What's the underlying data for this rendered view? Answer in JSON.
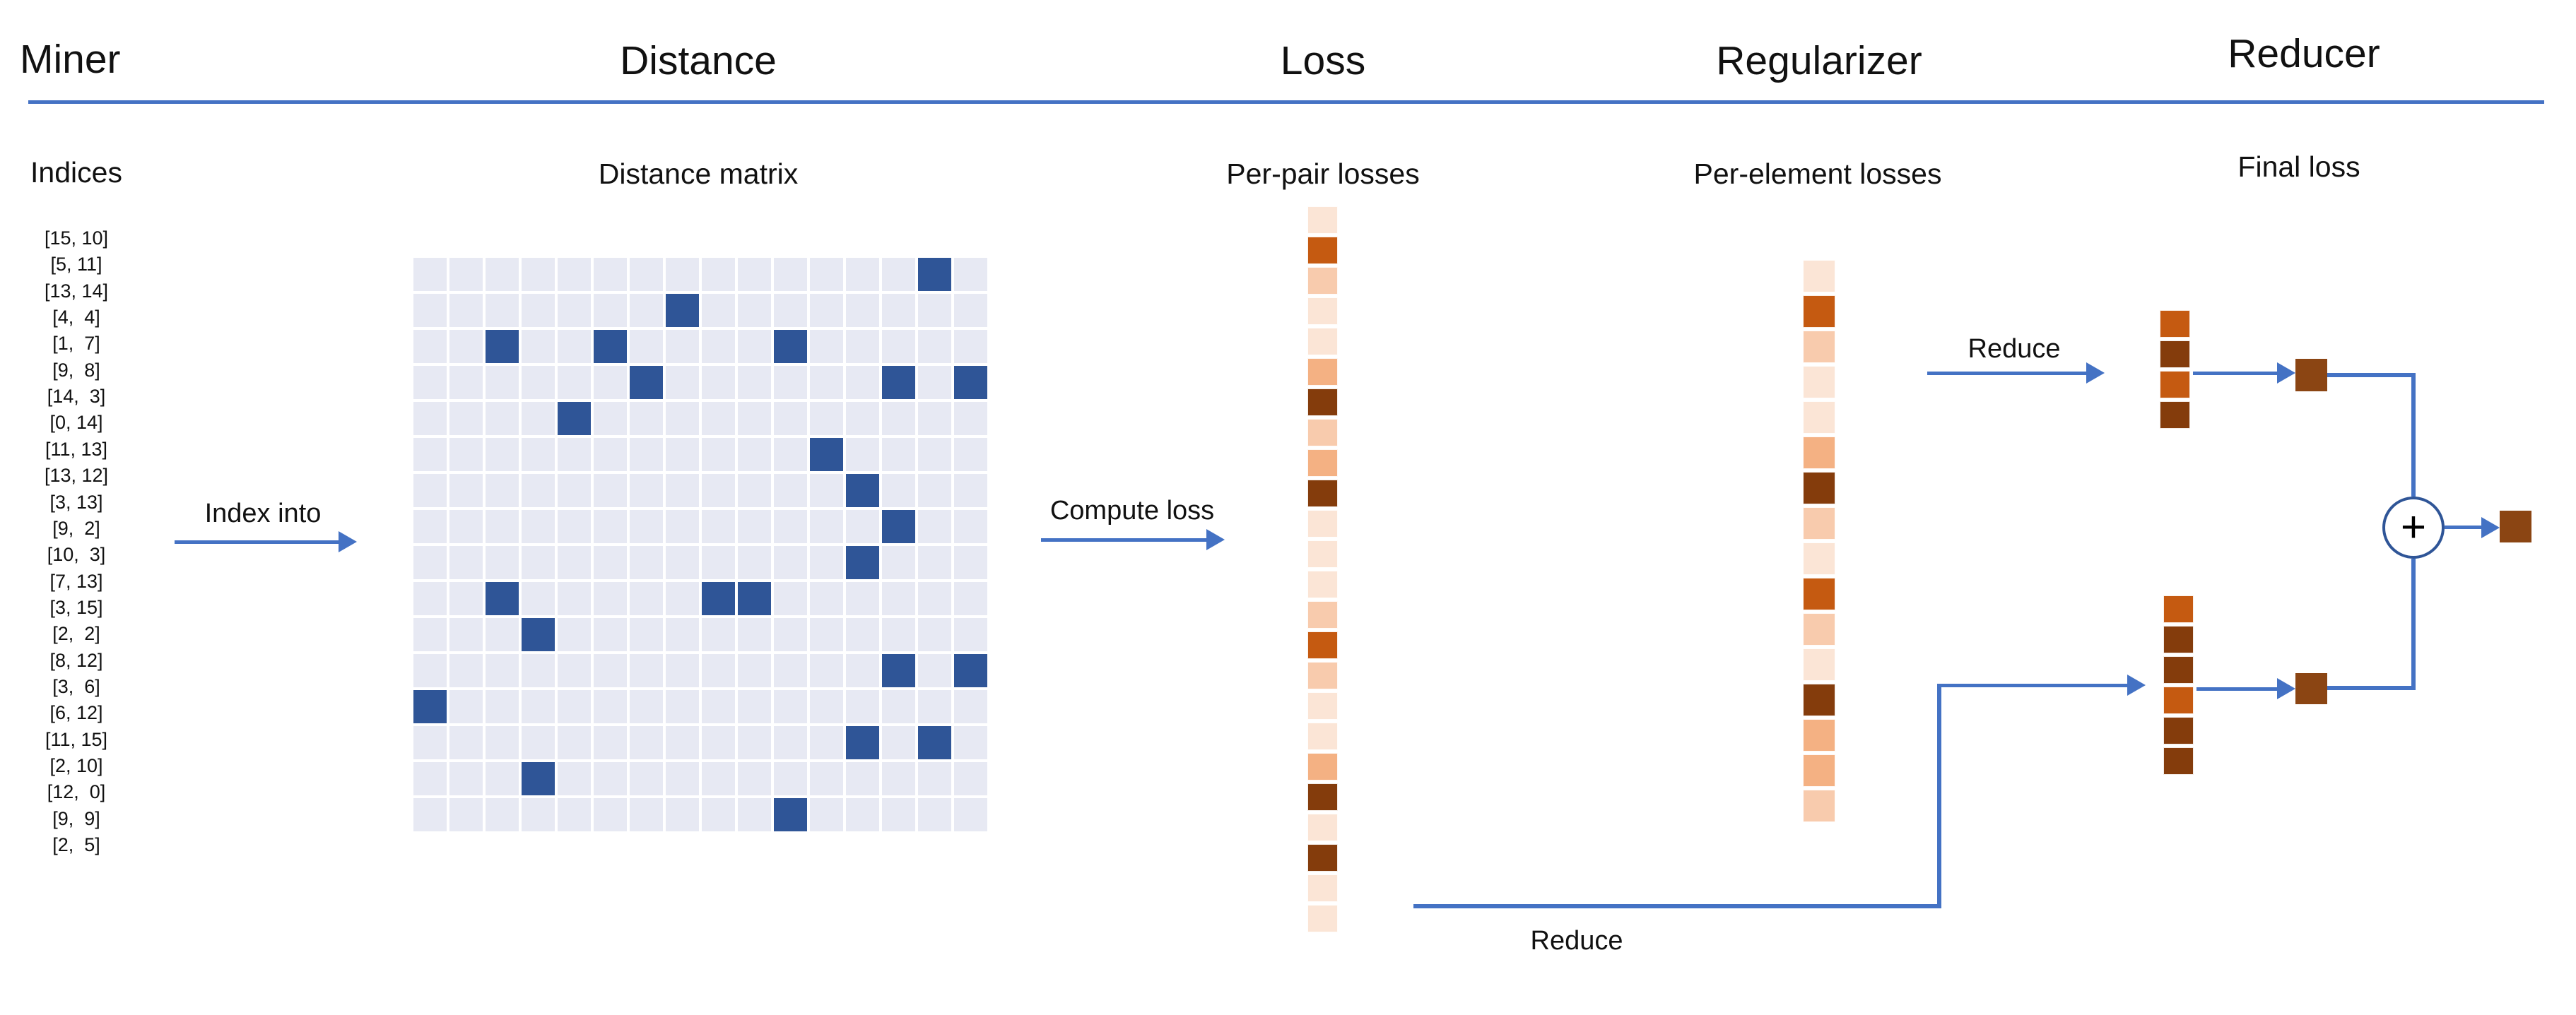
{
  "title_row": {
    "miner": "Miner",
    "distance": "Distance",
    "loss": "Loss",
    "regularizer": "Regularizer",
    "reducer": "Reducer"
  },
  "subheaders": {
    "miner": "Indices",
    "distance": "Distance matrix",
    "loss": "Per-pair losses",
    "regularizer": "Per-element losses",
    "reducer": "Final loss"
  },
  "labels": {
    "index_into": "Index into",
    "compute_loss": "Compute loss",
    "reduce_top": "Reduce",
    "reduce_bottom": "Reduce",
    "plus": "+"
  },
  "miner": {
    "indices": [
      "[15, 10]",
      "[5, 11]",
      "[13, 14]",
      "[4,  4]",
      "[1,  7]",
      "[9,  8]",
      "[14,  3]",
      "[0, 14]",
      "[11, 13]",
      "[13, 12]",
      "[3, 13]",
      "[9,  2]",
      "[10,  3]",
      "[7, 13]",
      "[3, 15]",
      "[2,  2]",
      "[8, 12]",
      "[3,  6]",
      "[6, 12]",
      "[11, 15]",
      "[2, 10]",
      "[12,  0]",
      "[9,  9]",
      "[2,  5]"
    ]
  },
  "distance_matrix": {
    "rows": 16,
    "cols": 16,
    "highlighted_cells": [
      [
        15,
        10
      ],
      [
        5,
        11
      ],
      [
        13,
        14
      ],
      [
        4,
        4
      ],
      [
        1,
        7
      ],
      [
        9,
        8
      ],
      [
        14,
        3
      ],
      [
        0,
        14
      ],
      [
        11,
        13
      ],
      [
        13,
        12
      ],
      [
        3,
        13
      ],
      [
        9,
        2
      ],
      [
        10,
        3
      ],
      [
        7,
        13
      ],
      [
        3,
        15
      ],
      [
        2,
        2
      ],
      [
        8,
        12
      ],
      [
        3,
        6
      ],
      [
        6,
        12
      ],
      [
        11,
        15
      ],
      [
        2,
        10
      ],
      [
        12,
        0
      ],
      [
        9,
        9
      ],
      [
        2,
        5
      ]
    ],
    "cell_color": "#E7E9F3",
    "highlight_color": "#2F5597"
  },
  "loss_palette": {
    "lightest": "#FBE5D6",
    "light": "#F8CBAD",
    "medium": "#F4B183",
    "strong": "#C55A11",
    "dark": "#843C0C",
    "result": "#8B4513"
  },
  "per_pair_losses": [
    "lightest",
    "strong",
    "light",
    "lightest",
    "lightest",
    "medium",
    "dark",
    "light",
    "medium",
    "dark",
    "lightest",
    "lightest",
    "lightest",
    "light",
    "strong",
    "light",
    "lightest",
    "lightest",
    "medium",
    "dark",
    "lightest",
    "dark",
    "lightest",
    "lightest"
  ],
  "per_element_losses": [
    "lightest",
    "strong",
    "light",
    "lightest",
    "lightest",
    "medium",
    "dark",
    "light",
    "lightest",
    "strong",
    "light",
    "lightest",
    "dark",
    "medium",
    "medium",
    "light"
  ],
  "reducer": {
    "top_stack": [
      "strong",
      "dark",
      "strong",
      "dark"
    ],
    "bottom_stack": [
      "strong",
      "dark",
      "dark",
      "strong",
      "dark",
      "dark"
    ],
    "top_block": "result",
    "bottom_block": "result",
    "final_block": "result"
  },
  "accent": {
    "arrow_blue": "#4472C4",
    "rule_blue": "#4472C4",
    "circle_border": "#2F5597"
  }
}
